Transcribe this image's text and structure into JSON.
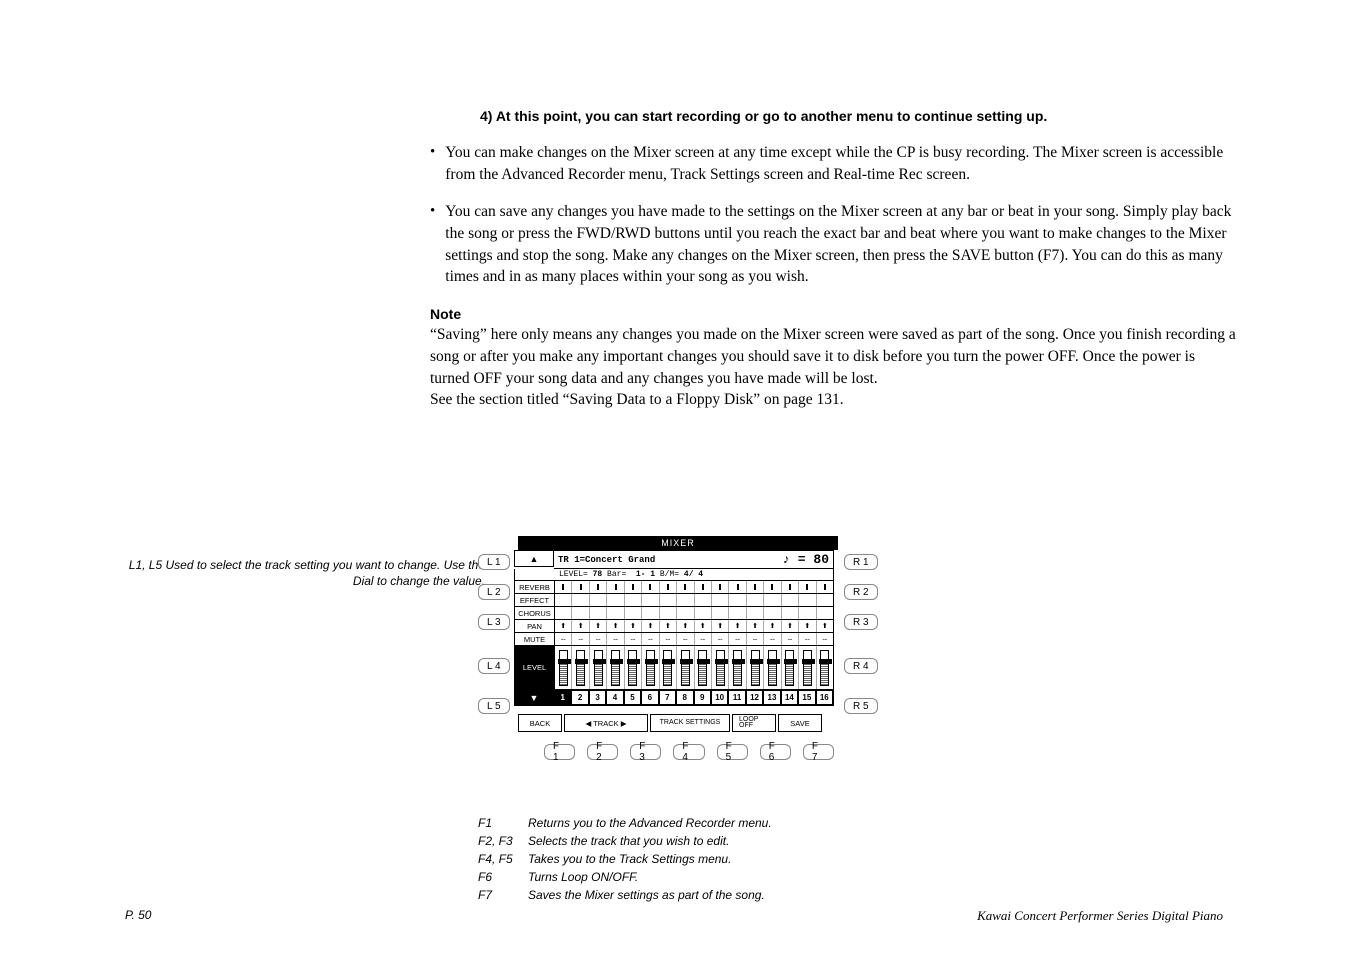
{
  "heading4": "4)  At this point, you can start recording or go to another menu to continue setting up.",
  "bullet1": "You can make changes on the Mixer screen at any time except while the CP is busy recording.  The Mixer screen is accessible from the Advanced Recorder menu, Track Settings screen and Real-time Rec screen.",
  "bullet2": "You can save any changes you have made to the settings on the Mixer screen at any bar or beat in your song.  Simply play back the song or press the FWD/RWD buttons until you reach the exact bar and beat where you want to make changes to the Mixer settings and stop the song.  Make any changes on the Mixer screen, then press the SAVE button (F7).  You can do this as many times and in as many places within your song as you wish.",
  "note_heading": "Note",
  "note_body1": "“Saving” here only means any changes you made on the Mixer screen were saved as part of the song.  Once you finish recording a song or after you make any important changes you should save it to disk before you turn the power OFF.  Once the power is turned OFF your song data and any changes you have made will be lost.",
  "note_body2": "See the section titled “Saving Data to a Floppy Disk” on page 131.",
  "left_caption": "L1, L5  Used to select the track setting you want to change.  Use the Dial to change the value.",
  "mixer": {
    "title": "MIXER",
    "track_info": "TR  1=Concert Grand",
    "level_label": "LEVEL=",
    "level_value": "78",
    "bar_label": "Bar=",
    "bar_value": "1-  1",
    "beat_label": "B/M=",
    "beat_value": "4/ 4",
    "tempo_symbol": "♪ =",
    "tempo_value": "80",
    "rows": [
      "REVERB",
      "EFFECT",
      "CHORUS",
      "PAN",
      "MUTE"
    ],
    "level_row": "LEVEL",
    "track_count": 16,
    "selected_track": 1,
    "soft_buttons": [
      "BACK",
      "◀  TRACK  ▶",
      "TRACK SETTINGS",
      "LOOP OFF",
      "SAVE"
    ],
    "l_buttons": [
      "L 1",
      "L 2",
      "L 3",
      "L 4",
      "L 5"
    ],
    "r_buttons": [
      "R 1",
      "R 2",
      "R 3",
      "R 4",
      "R 5"
    ],
    "f_buttons": [
      "F 1",
      "F 2",
      "F 3",
      "F 4",
      "F 5",
      "F 6",
      "F 7"
    ]
  },
  "legend": [
    {
      "key": "F1",
      "desc": "Returns you to the Advanced Recorder menu."
    },
    {
      "key": "F2, F3",
      "desc": "Selects the track that you wish to edit."
    },
    {
      "key": "F4, F5",
      "desc": "Takes you to the Track Settings menu."
    },
    {
      "key": "F6",
      "desc": "Turns Loop ON/OFF."
    },
    {
      "key": "F7",
      "desc": "Saves the Mixer settings as part of the song."
    }
  ],
  "footer": {
    "page": "P. 50",
    "title": "Kawai Concert Performer Series Digital Piano"
  },
  "colors": {
    "text": "#000000",
    "background": "#ffffff",
    "border_gray": "#888888"
  }
}
